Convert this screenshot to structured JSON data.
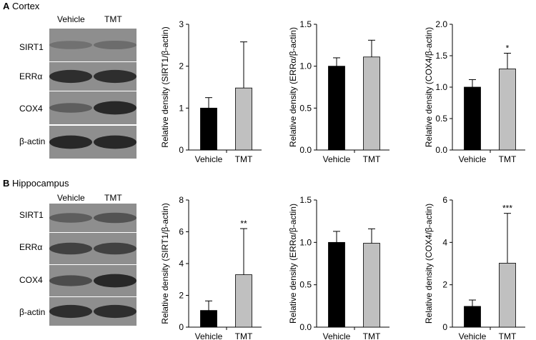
{
  "panels": [
    {
      "letter": "A",
      "title": "Cortex",
      "blot": {
        "columns": [
          "Vehicle",
          "TMT"
        ],
        "rows": [
          {
            "label": "SIRT1",
            "intensity": [
              0.3,
              0.34
            ]
          },
          {
            "label": "ERRα",
            "intensity": [
              0.85,
              0.85
            ]
          },
          {
            "label": "COX4",
            "intensity": [
              0.45,
              0.9
            ]
          },
          {
            "label": "β-actin",
            "intensity": [
              0.9,
              0.9
            ]
          }
        ]
      }
    },
    {
      "letter": "B",
      "title": "Hippocampus",
      "blot": {
        "columns": [
          "Vehicle",
          "TMT"
        ],
        "rows": [
          {
            "label": "SIRT1",
            "intensity": [
              0.45,
              0.55
            ]
          },
          {
            "label": "ERRα",
            "intensity": [
              0.7,
              0.7
            ]
          },
          {
            "label": "COX4",
            "intensity": [
              0.6,
              0.9
            ]
          },
          {
            "label": "β-actin",
            "intensity": [
              0.85,
              0.85
            ]
          }
        ]
      }
    }
  ],
  "chart_data": [
    {
      "type": "bar",
      "panel": "A",
      "ylabel": "Relative density (SIRT1/β-actin)",
      "categories": [
        "Vehicle",
        "TMT"
      ],
      "values": [
        1.0,
        1.48
      ],
      "errors": [
        0.25,
        1.1
      ],
      "ylim": [
        0,
        3
      ],
      "yticks": [
        "0",
        "1",
        "2",
        "3"
      ],
      "significance": [
        "",
        ""
      ],
      "colors": [
        "#000000",
        "#c0c0c0"
      ]
    },
    {
      "type": "bar",
      "panel": "A",
      "ylabel": "Relative density (ERRα/β-actin)",
      "categories": [
        "Vehicle",
        "TMT"
      ],
      "values": [
        1.0,
        1.11
      ],
      "errors": [
        0.1,
        0.2
      ],
      "ylim": [
        0,
        1.5
      ],
      "yticks": [
        "0.0",
        "0.5",
        "1.0",
        "1.5"
      ],
      "significance": [
        "",
        ""
      ],
      "colors": [
        "#000000",
        "#c0c0c0"
      ]
    },
    {
      "type": "bar",
      "panel": "A",
      "ylabel": "Relative density (COX4/β-actin)",
      "categories": [
        "Vehicle",
        "TMT"
      ],
      "values": [
        1.0,
        1.29
      ],
      "errors": [
        0.12,
        0.25
      ],
      "ylim": [
        0,
        2.0
      ],
      "yticks": [
        "0.0",
        "0.5",
        "1.0",
        "1.5",
        "2.0"
      ],
      "significance": [
        "",
        "*"
      ],
      "colors": [
        "#000000",
        "#c0c0c0"
      ]
    },
    {
      "type": "bar",
      "panel": "B",
      "ylabel": "Relative density (SIRT1/β-actin)",
      "categories": [
        "Vehicle",
        "TMT"
      ],
      "values": [
        1.05,
        3.3
      ],
      "errors": [
        0.6,
        2.9
      ],
      "ylim": [
        0,
        8
      ],
      "yticks": [
        "0",
        "2",
        "4",
        "6",
        "8"
      ],
      "significance": [
        "",
        "**"
      ],
      "colors": [
        "#000000",
        "#c0c0c0"
      ]
    },
    {
      "type": "bar",
      "panel": "B",
      "ylabel": "Relative density (ERRα/β-actin)",
      "categories": [
        "Vehicle",
        "TMT"
      ],
      "values": [
        1.0,
        0.99
      ],
      "errors": [
        0.13,
        0.17
      ],
      "ylim": [
        0,
        1.5
      ],
      "yticks": [
        "0.0",
        "0.5",
        "1.0",
        "1.5"
      ],
      "significance": [
        "",
        ""
      ],
      "colors": [
        "#000000",
        "#c0c0c0"
      ]
    },
    {
      "type": "bar",
      "panel": "B",
      "ylabel": "Relative density (COX4/β-actin)",
      "categories": [
        "Vehicle",
        "TMT"
      ],
      "values": [
        0.98,
        3.02
      ],
      "errors": [
        0.3,
        2.35
      ],
      "ylim": [
        0,
        6
      ],
      "yticks": [
        "0",
        "2",
        "4",
        "6"
      ],
      "significance": [
        "",
        "***"
      ],
      "colors": [
        "#000000",
        "#c0c0c0"
      ]
    }
  ]
}
